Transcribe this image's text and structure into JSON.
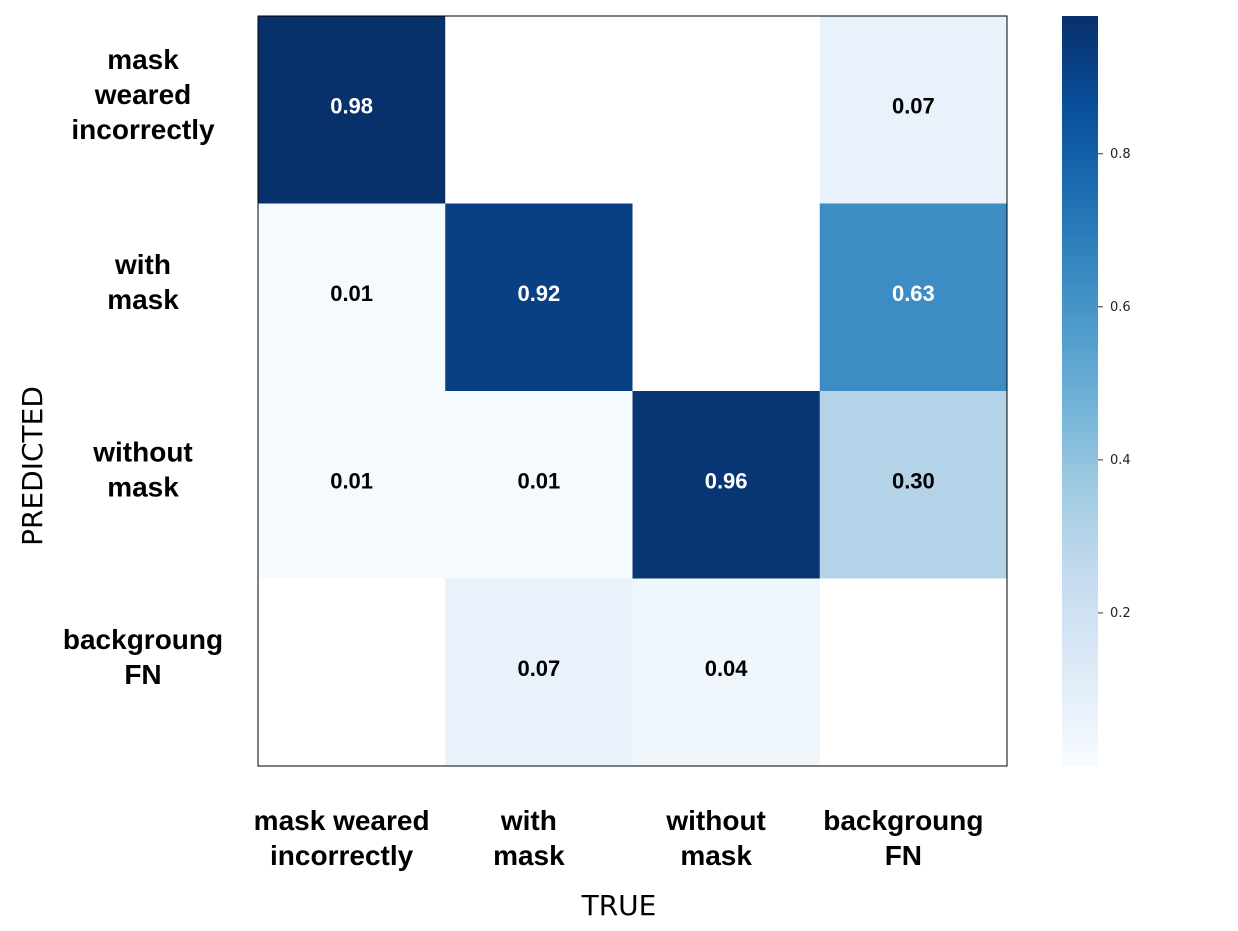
{
  "chart_data": {
    "type": "heatmap",
    "x_categories": [
      [
        "mask weared",
        "incorrectly"
      ],
      [
        "with",
        "mask"
      ],
      [
        "without",
        "mask"
      ],
      [
        "backgroung",
        "FN"
      ]
    ],
    "y_categories": [
      [
        "mask",
        "weared",
        "incorrectly"
      ],
      [
        "with",
        "mask"
      ],
      [
        "without",
        "mask"
      ],
      [
        "backgroung",
        "FN"
      ]
    ],
    "xlabel": "TRUE",
    "ylabel": "PREDICTED",
    "values": [
      [
        0.98,
        null,
        null,
        0.07
      ],
      [
        0.01,
        0.92,
        null,
        0.63
      ],
      [
        0.01,
        0.01,
        0.96,
        0.3
      ],
      [
        null,
        0.07,
        0.04,
        null
      ]
    ],
    "value_labels": [
      [
        "0.98",
        "",
        "",
        "0.07"
      ],
      [
        "0.01",
        "0.92",
        "",
        "0.63"
      ],
      [
        "0.01",
        "0.01",
        "0.96",
        "0.30"
      ],
      [
        "",
        "0.07",
        "0.04",
        ""
      ]
    ],
    "colorbar": {
      "range": [
        0,
        0.98
      ],
      "ticks": [
        0.2,
        0.4,
        0.6,
        0.8
      ],
      "tick_labels": [
        "0.2",
        "0.4",
        "0.6",
        "0.8"
      ]
    },
    "colormap": "Blues",
    "colormap_stops": [
      "#f7fbff",
      "#deebf7",
      "#c6dbef",
      "#9ecae1",
      "#6baed6",
      "#4292c6",
      "#2171b5",
      "#08519c",
      "#08306b"
    ],
    "grid": false,
    "legend": "none"
  }
}
